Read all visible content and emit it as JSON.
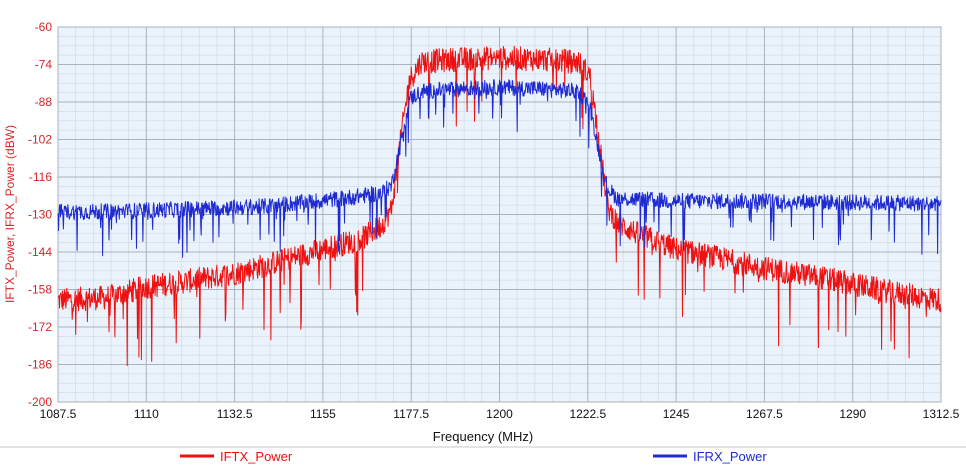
{
  "chart_data": {
    "type": "line",
    "xlabel": "Frequency (MHz)",
    "ylabel": "IFTX_Power, IFRX_Power (dBW)",
    "xlim": [
      1087.5,
      1312.5
    ],
    "ylim": [
      -200,
      -60
    ],
    "x_ticks": [
      "1087.5",
      "1110",
      "1132.5",
      "1155",
      "1177.5",
      "1200",
      "1222.5",
      "1245",
      "1267.5",
      "1290",
      "1312.5"
    ],
    "y_ticks": [
      "-60",
      "-74",
      "-88",
      "-102",
      "-116",
      "-130",
      "-144",
      "-158",
      "-172",
      "-186",
      "-200"
    ],
    "grid": true,
    "legend_position": "bottom",
    "series": [
      {
        "name": "IFTX_Power",
        "color": "#ee1111",
        "x": [
          1087.5,
          1100,
          1110,
          1120,
          1132.5,
          1145,
          1155,
          1165,
          1170,
          1172.5,
          1175,
          1177,
          1180,
          1190,
          1200,
          1210,
          1220,
          1223,
          1225,
          1227.5,
          1230,
          1235,
          1245,
          1255,
          1267.5,
          1280,
          1290,
          1300,
          1312.5
        ],
        "y": [
          -162,
          -161,
          -157,
          -155,
          -152,
          -147,
          -143,
          -139,
          -134,
          -128,
          -100,
          -80,
          -73,
          -72,
          -71.5,
          -72,
          -73,
          -78,
          -98,
          -127,
          -133,
          -137,
          -143,
          -146,
          -150,
          -153,
          -156,
          -159,
          -162
        ],
        "noise": 9
      },
      {
        "name": "IFRX_Power",
        "color": "#1f2bd1",
        "x": [
          1087.5,
          1100,
          1120,
          1140,
          1160,
          1170,
          1172.5,
          1175,
          1177,
          1180,
          1190,
          1200,
          1210,
          1220,
          1223,
          1225,
          1227.5,
          1230,
          1245,
          1270,
          1290,
          1312.5
        ],
        "y": [
          -129,
          -129,
          -128,
          -127,
          -124,
          -122,
          -119,
          -102,
          -87,
          -84,
          -83,
          -82.5,
          -83,
          -84,
          -89,
          -104,
          -120,
          -124,
          -125,
          -125,
          -125.5,
          -126
        ],
        "noise": 6
      }
    ]
  }
}
